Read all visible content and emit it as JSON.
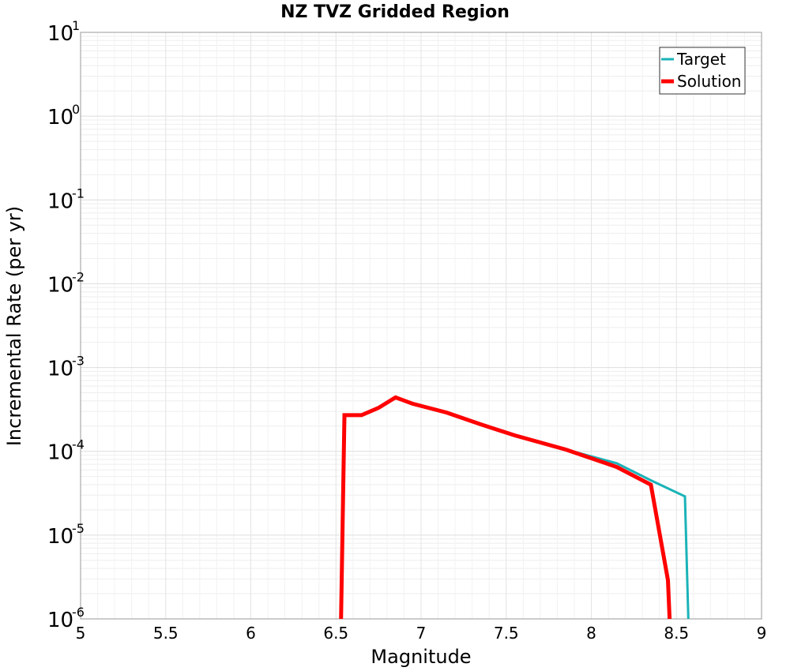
{
  "chart_data": {
    "type": "line",
    "title": "NZ TVZ Gridded Region",
    "xlabel": "Magnitude",
    "ylabel": "Incremental Rate (per yr)",
    "xlim": [
      5,
      9
    ],
    "ylim": [
      1e-06,
      10
    ],
    "yscale": "log",
    "grid": true,
    "legend_position": "top-right",
    "xticks": [
      "5",
      "5.5",
      "6",
      "6.5",
      "7",
      "7.5",
      "8",
      "8.5",
      "9"
    ],
    "yticks": [
      {
        "base": "10",
        "exp": "-6"
      },
      {
        "base": "10",
        "exp": "-5"
      },
      {
        "base": "10",
        "exp": "-4"
      },
      {
        "base": "10",
        "exp": "-3"
      },
      {
        "base": "10",
        "exp": "-2"
      },
      {
        "base": "10",
        "exp": "-1"
      },
      {
        "base": "10",
        "exp": "0"
      },
      {
        "base": "10",
        "exp": "1"
      }
    ],
    "series": [
      {
        "name": "Target",
        "color": "#1ab3b8",
        "x": [
          6.53,
          6.55,
          6.65,
          6.75,
          6.85,
          6.95,
          7.15,
          7.35,
          7.55,
          7.85,
          8.15,
          8.35,
          8.55,
          8.57
        ],
        "y": [
          1e-06,
          0.00027,
          0.00027,
          0.00033,
          0.00044,
          0.00037,
          0.00029,
          0.00021,
          0.000155,
          0.000105,
          7.2e-05,
          4.5e-05,
          2.9e-05,
          1e-06
        ]
      },
      {
        "name": "Solution",
        "color": "#ff0000",
        "x": [
          6.53,
          6.55,
          6.65,
          6.75,
          6.85,
          6.95,
          7.15,
          7.35,
          7.55,
          7.85,
          8.15,
          8.35,
          8.45,
          8.46
        ],
        "y": [
          1e-06,
          0.00027,
          0.00027,
          0.00033,
          0.00044,
          0.00037,
          0.00029,
          0.00021,
          0.000155,
          0.000105,
          6.5e-05,
          4e-05,
          2.9e-06,
          1e-06
        ]
      }
    ]
  }
}
